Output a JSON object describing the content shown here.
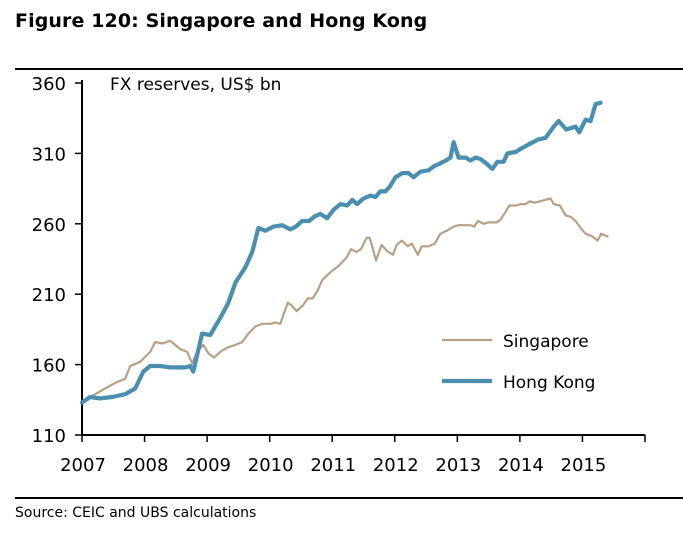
{
  "figure": {
    "title": "Figure 120: Singapore and Hong Kong",
    "source": "Source:  CEIC and UBS calculations"
  },
  "chart_data": {
    "type": "line",
    "title": "Figure 120: Singapore and Hong Kong",
    "annotation": "FX reserves, US$ bn",
    "xlabel": "",
    "ylabel": "FX reserves, US$ bn",
    "xlim": [
      2007,
      2016
    ],
    "ylim": [
      110,
      360
    ],
    "x_ticks": [
      2007,
      2008,
      2009,
      2010,
      2011,
      2012,
      2013,
      2014,
      2015,
      2016
    ],
    "x_tick_labels": [
      "2007",
      "2008",
      "2009",
      "2010",
      "2011",
      "2012",
      "2013",
      "2014",
      "2015"
    ],
    "y_ticks": [
      110,
      160,
      210,
      260,
      310,
      360
    ],
    "y_tick_labels": [
      "110",
      "160",
      "210",
      "260",
      "310",
      "360"
    ],
    "grid": false,
    "legend_position": "bottom-right",
    "series": [
      {
        "name": "Singapore",
        "color": "#b8a087",
        "points": [
          [
            2007.0,
            133
          ],
          [
            2007.21,
            139
          ],
          [
            2007.37,
            143
          ],
          [
            2007.53,
            147
          ],
          [
            2007.69,
            150
          ],
          [
            2007.77,
            159
          ],
          [
            2007.93,
            162
          ],
          [
            2008.09,
            169
          ],
          [
            2008.17,
            176
          ],
          [
            2008.29,
            175
          ],
          [
            2008.41,
            177
          ],
          [
            2008.57,
            171
          ],
          [
            2008.68,
            169
          ],
          [
            2008.76,
            161
          ],
          [
            2008.84,
            169
          ],
          [
            2008.94,
            174
          ],
          [
            2009.02,
            168
          ],
          [
            2009.11,
            165
          ],
          [
            2009.21,
            169
          ],
          [
            2009.32,
            172
          ],
          [
            2009.45,
            174
          ],
          [
            2009.56,
            176
          ],
          [
            2009.66,
            182
          ],
          [
            2009.77,
            187
          ],
          [
            2009.88,
            189
          ],
          [
            2010.01,
            189
          ],
          [
            2010.09,
            190
          ],
          [
            2010.17,
            189
          ],
          [
            2010.21,
            194
          ],
          [
            2010.29,
            204
          ],
          [
            2010.35,
            202
          ],
          [
            2010.43,
            198
          ],
          [
            2010.53,
            202
          ],
          [
            2010.61,
            207
          ],
          [
            2010.69,
            207
          ],
          [
            2010.77,
            213
          ],
          [
            2010.84,
            220
          ],
          [
            2010.98,
            226
          ],
          [
            2011.1,
            230
          ],
          [
            2011.23,
            236
          ],
          [
            2011.3,
            242
          ],
          [
            2011.39,
            240
          ],
          [
            2011.46,
            242
          ],
          [
            2011.55,
            250
          ],
          [
            2011.6,
            250
          ],
          [
            2011.7,
            234
          ],
          [
            2011.79,
            245
          ],
          [
            2011.87,
            241
          ],
          [
            2011.97,
            238
          ],
          [
            2012.03,
            245
          ],
          [
            2012.11,
            248
          ],
          [
            2012.21,
            244
          ],
          [
            2012.27,
            246
          ],
          [
            2012.37,
            238
          ],
          [
            2012.43,
            244
          ],
          [
            2012.54,
            244
          ],
          [
            2012.64,
            246
          ],
          [
            2012.73,
            253
          ],
          [
            2012.83,
            255
          ],
          [
            2012.94,
            258
          ],
          [
            2013.02,
            259
          ],
          [
            2013.21,
            259
          ],
          [
            2013.27,
            258
          ],
          [
            2013.33,
            262
          ],
          [
            2013.42,
            260
          ],
          [
            2013.49,
            261
          ],
          [
            2013.63,
            261
          ],
          [
            2013.69,
            263
          ],
          [
            2013.75,
            267
          ],
          [
            2013.83,
            273
          ],
          [
            2013.94,
            273
          ],
          [
            2014.01,
            274
          ],
          [
            2014.09,
            274
          ],
          [
            2014.16,
            276
          ],
          [
            2014.24,
            275
          ],
          [
            2014.32,
            276
          ],
          [
            2014.4,
            277
          ],
          [
            2014.49,
            278
          ],
          [
            2014.54,
            274
          ],
          [
            2014.64,
            273
          ],
          [
            2014.73,
            266
          ],
          [
            2014.81,
            265
          ],
          [
            2014.89,
            262
          ],
          [
            2014.97,
            257
          ],
          [
            2015.05,
            253
          ],
          [
            2015.16,
            251
          ],
          [
            2015.24,
            248
          ],
          [
            2015.3,
            253
          ],
          [
            2015.4,
            251
          ]
        ]
      },
      {
        "name": "Hong Kong",
        "color": "#4a8fb0",
        "points": [
          [
            2007.0,
            133
          ],
          [
            2007.13,
            137
          ],
          [
            2007.29,
            136
          ],
          [
            2007.48,
            137
          ],
          [
            2007.69,
            139
          ],
          [
            2007.85,
            143
          ],
          [
            2007.98,
            155
          ],
          [
            2008.09,
            159
          ],
          [
            2008.25,
            159
          ],
          [
            2008.41,
            158
          ],
          [
            2008.65,
            158
          ],
          [
            2008.73,
            159
          ],
          [
            2008.78,
            155
          ],
          [
            2008.92,
            182
          ],
          [
            2009.05,
            181
          ],
          [
            2009.21,
            193
          ],
          [
            2009.34,
            204
          ],
          [
            2009.45,
            218
          ],
          [
            2009.61,
            229
          ],
          [
            2009.72,
            240
          ],
          [
            2009.82,
            257
          ],
          [
            2009.93,
            255
          ],
          [
            2010.06,
            258
          ],
          [
            2010.2,
            259
          ],
          [
            2010.33,
            256
          ],
          [
            2010.42,
            258
          ],
          [
            2010.52,
            262
          ],
          [
            2010.63,
            262
          ],
          [
            2010.71,
            265
          ],
          [
            2010.81,
            267
          ],
          [
            2010.92,
            264
          ],
          [
            2011.02,
            270
          ],
          [
            2011.13,
            274
          ],
          [
            2011.24,
            273
          ],
          [
            2011.32,
            277
          ],
          [
            2011.4,
            274
          ],
          [
            2011.5,
            278
          ],
          [
            2011.61,
            280
          ],
          [
            2011.69,
            279
          ],
          [
            2011.77,
            283
          ],
          [
            2011.85,
            283
          ],
          [
            2011.93,
            287
          ],
          [
            2012.01,
            293
          ],
          [
            2012.12,
            296
          ],
          [
            2012.22,
            296
          ],
          [
            2012.3,
            293
          ],
          [
            2012.41,
            297
          ],
          [
            2012.54,
            298
          ],
          [
            2012.63,
            301
          ],
          [
            2012.73,
            303
          ],
          [
            2012.82,
            305
          ],
          [
            2012.89,
            307
          ],
          [
            2012.94,
            318
          ],
          [
            2013.02,
            307
          ],
          [
            2013.13,
            307
          ],
          [
            2013.21,
            305
          ],
          [
            2013.29,
            307
          ],
          [
            2013.37,
            306
          ],
          [
            2013.46,
            303
          ],
          [
            2013.56,
            299
          ],
          [
            2013.64,
            304
          ],
          [
            2013.74,
            304
          ],
          [
            2013.8,
            310
          ],
          [
            2013.93,
            311
          ],
          [
            2014.04,
            314
          ],
          [
            2014.17,
            317
          ],
          [
            2014.3,
            320
          ],
          [
            2014.41,
            321
          ],
          [
            2014.54,
            329
          ],
          [
            2014.62,
            333
          ],
          [
            2014.74,
            327
          ],
          [
            2014.89,
            329
          ],
          [
            2014.95,
            325
          ],
          [
            2015.05,
            334
          ],
          [
            2015.13,
            333
          ],
          [
            2015.21,
            345
          ],
          [
            2015.29,
            346
          ]
        ]
      }
    ]
  }
}
